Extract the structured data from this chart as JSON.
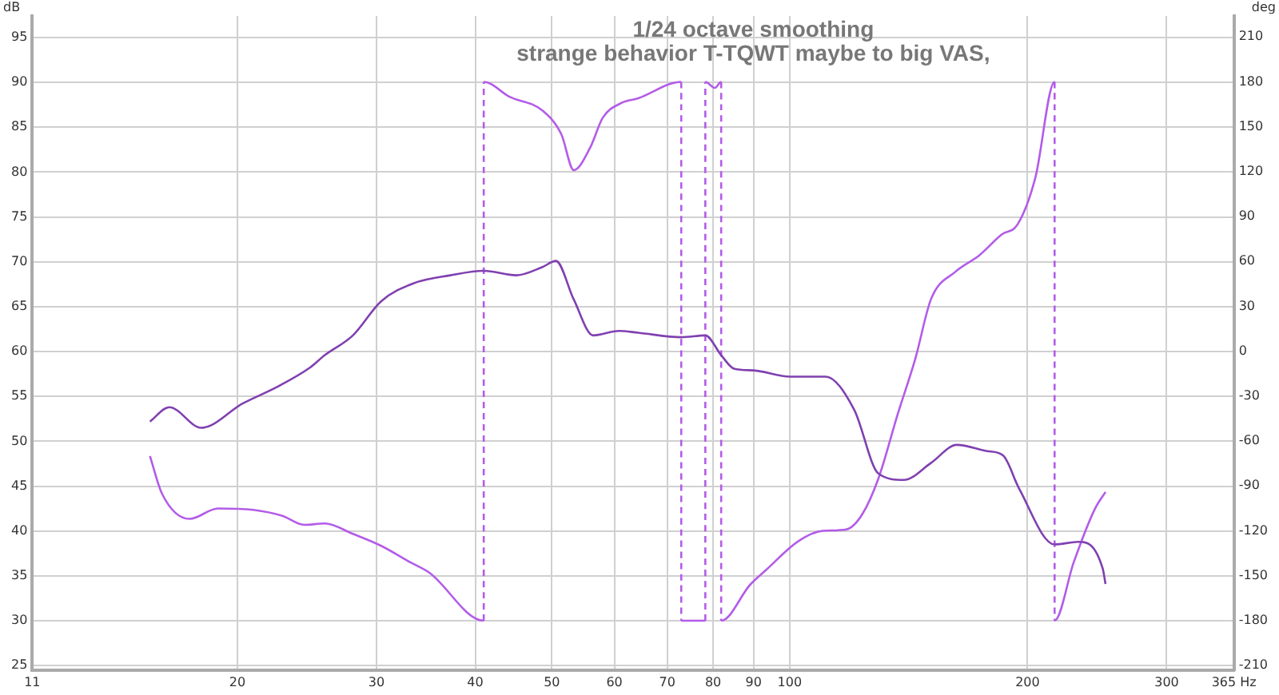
{
  "chart_data": {
    "type": "line",
    "title": "1/24 octave smoothing",
    "subtitle": "strange behavior T-TQWT maybe to big VAS,",
    "ylabel": "dB",
    "y2label": "deg",
    "log": "x",
    "grid": true,
    "xlim": [
      11,
      365
    ],
    "xticks": [
      11,
      20,
      30,
      40,
      50,
      60,
      70,
      80,
      90,
      100,
      200,
      300,
      {
        "value": 365,
        "label": "365 Hz"
      }
    ],
    "ylim": [
      24.5,
      97.4
    ],
    "yticks": [
      25,
      30,
      35,
      40,
      45,
      50,
      55,
      60,
      65,
      70,
      75,
      80,
      85,
      90,
      95
    ],
    "y2lim": [
      -213,
      224
    ],
    "y2ticks": [
      -210,
      -180,
      -150,
      -120,
      -90,
      -60,
      -30,
      0,
      30,
      60,
      90,
      120,
      150,
      180,
      210
    ],
    "series": [
      {
        "color": "#8040b0",
        "x": [
          15.5,
          16.4,
          18.0,
          20.3,
          22.5,
          24.7,
          25.8,
          28.0,
          30.4,
          33.4,
          37.2,
          41.0,
          45.1,
          48.6,
          50.6,
          53.3,
          56.4,
          60.8,
          64.3,
          72.9,
          78.2,
          81.9,
          85.0,
          90.0,
          100.1,
          111,
          120.7,
          129.5,
          139.5,
          151,
          162.7,
          177.9,
          186.3,
          195.2,
          216.4,
          232,
          249,
          251
        ],
        "values": [
          52.2,
          53.8,
          51.5,
          54.2,
          56.1,
          58.2,
          59.6,
          61.8,
          65.6,
          67.6,
          68.5,
          69.0,
          68.5,
          69.4,
          70.1,
          65.8,
          61.8,
          62.3,
          62.1,
          61.6,
          61.8,
          59.6,
          58.1,
          57.9,
          57.2,
          57.2,
          53.5,
          46.4,
          45.7,
          47.6,
          49.6,
          48.9,
          48.4,
          44.7,
          38.5,
          38.8,
          35.8,
          34.1
        ]
      },
      {
        "color": "#b35ce8",
        "axis": "y2",
        "x": [
          15.5,
          16.05,
          17.4,
          18.9,
          20.95,
          22.8,
          24.3,
          25.8,
          28.0,
          30.4,
          33.1,
          35.0,
          41.0,
          41.0,
          44.2,
          48.6,
          51.4,
          53.3,
          55.9,
          58.0,
          61.3,
          64.3,
          72.9,
          72.9,
          78.2,
          78.2,
          80.4,
          81.9,
          81.9,
          89.1,
          93.4,
          102.5,
          110,
          117.9,
          123.5,
          129.5,
          137,
          144.2,
          151,
          162,
          173.7,
          185.5,
          194.4,
          204.6,
          216.4,
          216.4,
          228.8,
          243,
          251
        ],
        "values": [
          -70,
          -95,
          -112,
          -105,
          -106,
          -110,
          -116,
          -115,
          -122,
          -130,
          -141,
          -148,
          -180,
          180,
          170,
          161,
          145,
          121,
          136,
          156,
          166,
          169,
          180,
          -180,
          -180,
          180,
          176,
          180,
          -180,
          -156,
          -146,
          -127,
          -120,
          -119,
          -109,
          -85,
          -42,
          -5,
          35,
          53,
          64,
          78,
          85,
          116,
          180,
          -180,
          -141,
          -106,
          -94
        ]
      }
    ]
  }
}
